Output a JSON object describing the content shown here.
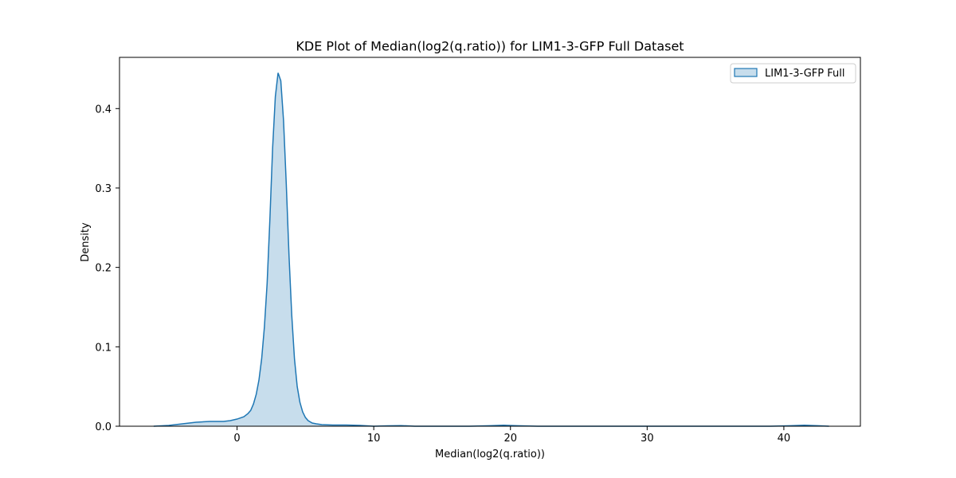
{
  "chart_data": {
    "type": "area",
    "title": "KDE Plot of Median(log2(q.ratio)) for LIM1-3-GFP Full Dataset",
    "xlabel": "Median(log2(q.ratio))",
    "ylabel": "Density",
    "xlim": [
      -8.6,
      45.6
    ],
    "ylim": [
      0,
      0.4645
    ],
    "xticks": [
      0,
      10,
      20,
      30,
      40
    ],
    "yticks": [
      0.0,
      0.1,
      0.2,
      0.3,
      0.4
    ],
    "xtick_labels": [
      "0",
      "10",
      "20",
      "30",
      "40"
    ],
    "ytick_labels": [
      "0.0",
      "0.1",
      "0.2",
      "0.3",
      "0.4"
    ],
    "grid": false,
    "legend_position": "top-right",
    "series": [
      {
        "name": "LIM1-3-GFP Full",
        "color": "#1f77b4",
        "fill_opacity": 0.25,
        "x": [
          -6.1,
          -5.0,
          -4.0,
          -3.0,
          -2.0,
          -1.0,
          -0.5,
          0.0,
          0.5,
          0.8,
          1.0,
          1.2,
          1.4,
          1.6,
          1.8,
          2.0,
          2.2,
          2.4,
          2.6,
          2.8,
          3.0,
          3.2,
          3.4,
          3.6,
          3.8,
          4.0,
          4.2,
          4.4,
          4.6,
          4.8,
          5.0,
          5.2,
          5.5,
          5.8,
          6.2,
          7.0,
          8.0,
          9.0,
          10.0,
          11.0,
          12.0,
          13.0,
          15.0,
          17.0,
          18.5,
          19.5,
          20.5,
          22.0,
          25.0,
          30.0,
          35.0,
          39.0,
          40.5,
          41.5,
          42.5,
          43.3
        ],
        "y": [
          0.0,
          0.001,
          0.003,
          0.005,
          0.006,
          0.006,
          0.007,
          0.009,
          0.012,
          0.016,
          0.02,
          0.028,
          0.04,
          0.058,
          0.085,
          0.125,
          0.18,
          0.26,
          0.35,
          0.415,
          0.445,
          0.435,
          0.385,
          0.305,
          0.215,
          0.14,
          0.085,
          0.05,
          0.03,
          0.018,
          0.011,
          0.007,
          0.004,
          0.003,
          0.002,
          0.0015,
          0.0015,
          0.001,
          0.0,
          0.0005,
          0.0008,
          0.0,
          0.0,
          0.0,
          0.0006,
          0.0012,
          0.0006,
          0.0,
          0.0,
          0.0,
          0.0,
          0.0,
          0.0006,
          0.0012,
          0.0006,
          0.0
        ]
      }
    ]
  }
}
